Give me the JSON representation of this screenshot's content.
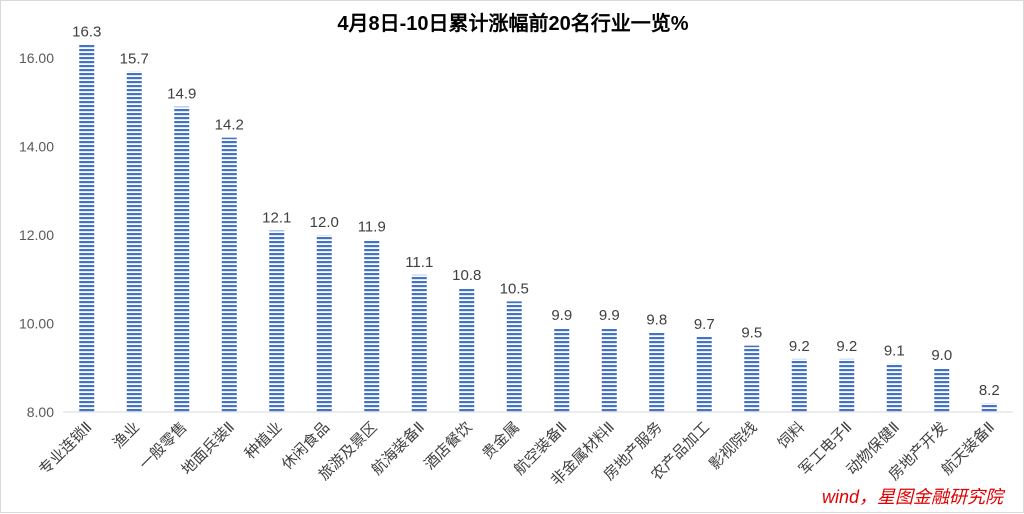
{
  "chart_data": {
    "type": "bar",
    "title": "4月8日-10日累计涨幅前20名行业一览%",
    "xlabel": "",
    "ylabel": "",
    "ylim": [
      8,
      16.5
    ],
    "yticks": [
      "8.00",
      "10.00",
      "12.00",
      "14.00",
      "16.00"
    ],
    "ytick_values": [
      8,
      10,
      12,
      14,
      16
    ],
    "grid": false,
    "legend": "none",
    "bar_color": "#4472c4",
    "categories": [
      "专业连锁Ⅱ",
      "渔业",
      "一般零售",
      "地面兵装Ⅱ",
      "种植业",
      "休闲食品",
      "旅游及景区",
      "航海装备Ⅱ",
      "酒店餐饮",
      "贵金属",
      "航空装备Ⅱ",
      "非金属材料Ⅱ",
      "房地产服务",
      "农产品加工",
      "影视院线",
      "饲料",
      "军工电子Ⅱ",
      "动物保健Ⅱ",
      "房地产开发",
      "航天装备Ⅱ"
    ],
    "values": [
      16.3,
      15.7,
      14.9,
      14.2,
      12.1,
      12.0,
      11.9,
      11.1,
      10.8,
      10.5,
      9.9,
      9.9,
      9.8,
      9.7,
      9.5,
      9.2,
      9.2,
      9.1,
      9.0,
      8.2
    ],
    "value_labels": [
      "16.3",
      "15.7",
      "14.9",
      "14.2",
      "12.1",
      "12.0",
      "11.9",
      "11.1",
      "10.8",
      "10.5",
      "9.9",
      "9.9",
      "9.8",
      "9.7",
      "9.5",
      "9.2",
      "9.2",
      "9.1",
      "9.0",
      "8.2"
    ]
  },
  "source_note": "wind，星图金融研究院"
}
